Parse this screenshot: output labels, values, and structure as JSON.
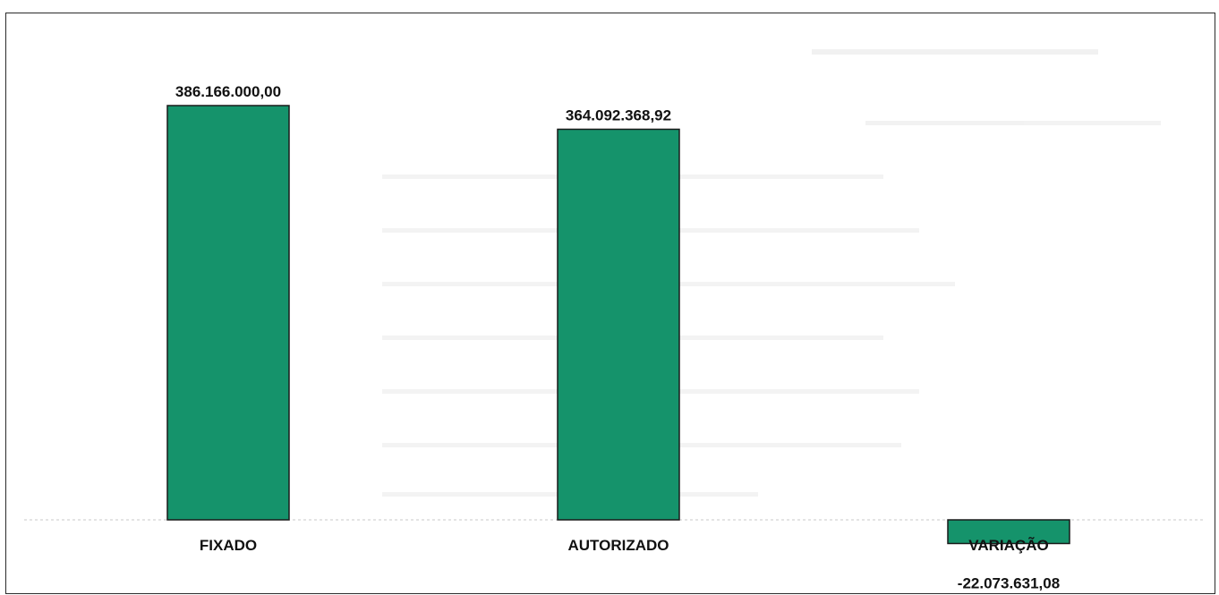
{
  "chart_data": {
    "type": "bar",
    "title": "",
    "xlabel": "",
    "ylabel": "",
    "categories": [
      "FIXADO",
      "AUTORIZADO",
      "VARIAÇÃO"
    ],
    "values": [
      386166000.0,
      364092368.92,
      -22073631.08
    ],
    "value_labels": [
      "386.166.000,00",
      "364.092.368,92",
      "-22.073.631,08"
    ],
    "ylim": [
      -22073631.08,
      386166000.0
    ],
    "grid": false,
    "legend": "none"
  },
  "colors": {
    "bar_fill": "#15936b",
    "bar_stroke": "#1a1a1a",
    "baseline": "#c8c8c8"
  }
}
